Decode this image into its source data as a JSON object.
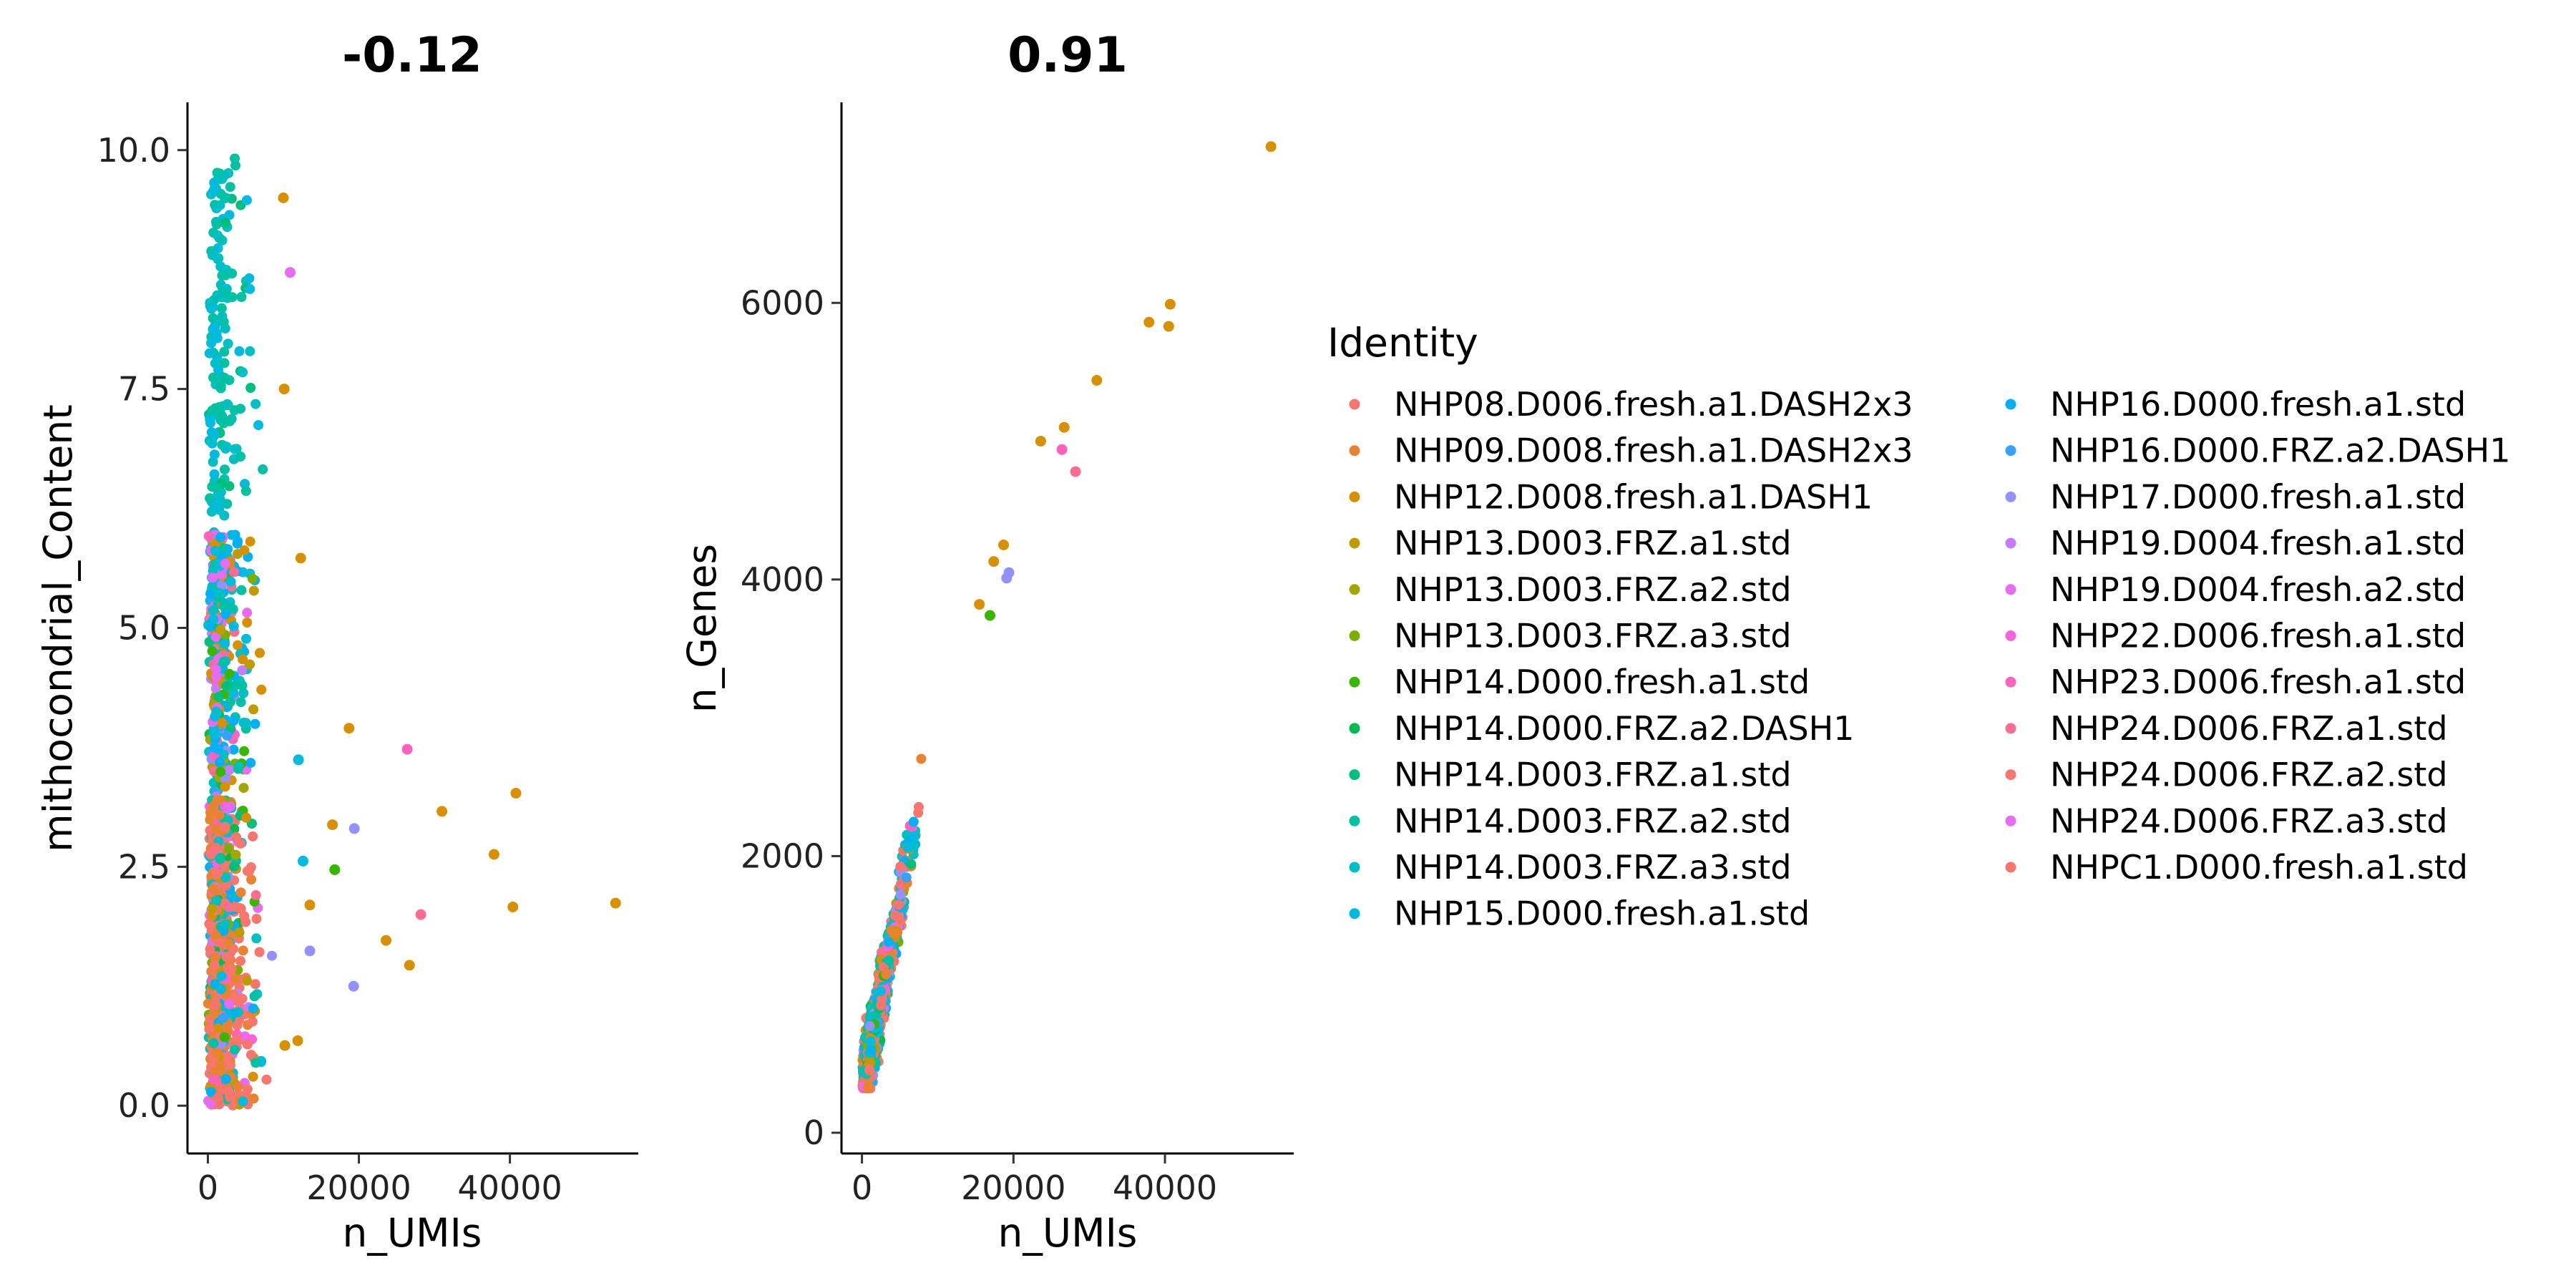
{
  "chart_data": [
    {
      "type": "scatter",
      "title": "-0.12",
      "xlabel": "n_UMIs",
      "ylabel": "mithocondrial_Content",
      "xlim": [
        -2700,
        57000
      ],
      "ylim": [
        -0.5,
        10.5
      ],
      "xticks": [
        0,
        20000,
        40000
      ],
      "xtick_labels": [
        "0",
        "20000",
        "40000"
      ],
      "yticks": [
        0,
        2.5,
        5,
        7.5,
        10
      ],
      "ytick_labels": [
        "0.0",
        "2.5",
        "5.0",
        "7.5",
        "10.0"
      ],
      "grid": false,
      "notable_points": [
        {
          "x": 54000,
          "y": 2.12,
          "identity": "NHP12.D008.fresh.a1.DASH1"
        },
        {
          "x": 40800,
          "y": 3.27,
          "identity": "NHP12.D008.fresh.a1.DASH1"
        },
        {
          "x": 40400,
          "y": 2.08,
          "identity": "NHP12.D008.fresh.a1.DASH1"
        },
        {
          "x": 37900,
          "y": 2.63,
          "identity": "NHP12.D008.fresh.a1.DASH1"
        },
        {
          "x": 31000,
          "y": 3.08,
          "identity": "NHP12.D008.fresh.a1.DASH1"
        },
        {
          "x": 28200,
          "y": 2.0,
          "identity": "NHP24.D006.FRZ.a1.std"
        },
        {
          "x": 26700,
          "y": 1.47,
          "identity": "NHP12.D008.fresh.a1.DASH1"
        },
        {
          "x": 26400,
          "y": 3.73,
          "identity": "NHP23.D006.fresh.a1.std"
        },
        {
          "x": 23600,
          "y": 1.73,
          "identity": "NHP12.D008.fresh.a1.DASH1"
        },
        {
          "x": 19300,
          "y": 1.25,
          "identity": "NHP17.D000.fresh.a1.std"
        },
        {
          "x": 19400,
          "y": 2.9,
          "identity": "NHP17.D000.fresh.a1.std"
        },
        {
          "x": 18700,
          "y": 3.95,
          "identity": "NHP12.D008.fresh.a1.DASH1"
        },
        {
          "x": 16800,
          "y": 2.47,
          "identity": "NHP14.D000.fresh.a1.std"
        },
        {
          "x": 16500,
          "y": 2.94,
          "identity": "NHP12.D008.fresh.a1.DASH1"
        },
        {
          "x": 10000,
          "y": 9.5,
          "identity": "NHP12.D008.fresh.a1.DASH1"
        },
        {
          "x": 10900,
          "y": 8.72,
          "identity": "NHP19.D004.fresh.a2.std"
        },
        {
          "x": 10100,
          "y": 7.5,
          "identity": "NHP12.D008.fresh.a1.DASH1"
        },
        {
          "x": 12300,
          "y": 5.73,
          "identity": "NHP12.D008.fresh.a1.DASH1"
        },
        {
          "x": 12000,
          "y": 3.62,
          "identity": "NHP15.D000.fresh.a1.std"
        },
        {
          "x": 12600,
          "y": 2.56,
          "identity": "NHP15.D000.fresh.a1.std"
        },
        {
          "x": 13500,
          "y": 2.1,
          "identity": "NHP12.D008.fresh.a1.DASH1"
        },
        {
          "x": 13500,
          "y": 1.62,
          "identity": "NHP17.D000.fresh.a1.std"
        },
        {
          "x": 11900,
          "y": 0.68,
          "identity": "NHP12.D008.fresh.a1.DASH1"
        },
        {
          "x": 10200,
          "y": 0.63,
          "identity": "NHP12.D008.fresh.a1.DASH1"
        }
      ]
    },
    {
      "type": "scatter",
      "title": "0.91",
      "xlabel": "n_UMIs",
      "ylabel": "n_Genes",
      "xlim": [
        -2700,
        57000
      ],
      "ylim": [
        -150,
        7450
      ],
      "xticks": [
        0,
        20000,
        40000
      ],
      "xtick_labels": [
        "0",
        "20000",
        "40000"
      ],
      "yticks": [
        0,
        2000,
        4000,
        6000
      ],
      "ytick_labels": [
        "0",
        "2000",
        "4000",
        "6000"
      ],
      "grid": false,
      "notable_points": [
        {
          "x": 54000,
          "y": 7130,
          "identity": "NHP12.D008.fresh.a1.DASH1"
        },
        {
          "x": 40700,
          "y": 5990,
          "identity": "NHP12.D008.fresh.a1.DASH1"
        },
        {
          "x": 40500,
          "y": 5830,
          "identity": "NHP12.D008.fresh.a1.DASH1"
        },
        {
          "x": 37900,
          "y": 5860,
          "identity": "NHP12.D008.fresh.a1.DASH1"
        },
        {
          "x": 31000,
          "y": 5440,
          "identity": "NHP12.D008.fresh.a1.DASH1"
        },
        {
          "x": 28200,
          "y": 4780,
          "identity": "NHP24.D006.FRZ.a1.std"
        },
        {
          "x": 26700,
          "y": 5100,
          "identity": "NHP12.D008.fresh.a1.DASH1"
        },
        {
          "x": 26400,
          "y": 4940,
          "identity": "NHP23.D006.fresh.a1.std"
        },
        {
          "x": 23600,
          "y": 5000,
          "identity": "NHP12.D008.fresh.a1.DASH1"
        },
        {
          "x": 19400,
          "y": 4050,
          "identity": "NHP17.D000.fresh.a1.std"
        },
        {
          "x": 19100,
          "y": 4010,
          "identity": "NHP17.D000.fresh.a1.std"
        },
        {
          "x": 18700,
          "y": 4250,
          "identity": "NHP12.D008.fresh.a1.DASH1"
        },
        {
          "x": 17400,
          "y": 4130,
          "identity": "NHP12.D008.fresh.a1.DASH1"
        },
        {
          "x": 16900,
          "y": 3740,
          "identity": "NHP14.D000.fresh.a1.std"
        },
        {
          "x": 15500,
          "y": 3820,
          "identity": "NHP12.D008.fresh.a1.DASH1"
        }
      ]
    }
  ],
  "legend": {
    "title": "Identity",
    "placement": "right",
    "entries": [
      {
        "label": "NHP08.D006.fresh.a1.DASH2x3",
        "color": "#F8766D"
      },
      {
        "label": "NHP09.D008.fresh.a1.DASH2x3",
        "color": "#EA8331"
      },
      {
        "label": "NHP12.D008.fresh.a1.DASH1",
        "color": "#D89000"
      },
      {
        "label": "NHP13.D003.FRZ.a1.std",
        "color": "#C09B00"
      },
      {
        "label": "NHP13.D003.FRZ.a2.std",
        "color": "#A3A500"
      },
      {
        "label": "NHP13.D003.FRZ.a3.std",
        "color": "#7CAE00"
      },
      {
        "label": "NHP14.D000.fresh.a1.std",
        "color": "#39B600"
      },
      {
        "label": "NHP14.D000.FRZ.a2.DASH1",
        "color": "#00BB4E"
      },
      {
        "label": "NHP14.D003.FRZ.a1.std",
        "color": "#00BF7D"
      },
      {
        "label": "NHP14.D003.FRZ.a2.std",
        "color": "#00C1A3"
      },
      {
        "label": "NHP14.D003.FRZ.a3.std",
        "color": "#00BFC4"
      },
      {
        "label": "NHP15.D000.fresh.a1.std",
        "color": "#00BAE0"
      },
      {
        "label": "NHP16.D000.fresh.a1.std",
        "color": "#00B0F6"
      },
      {
        "label": "NHP16.D000.FRZ.a2.DASH1",
        "color": "#35A2FF"
      },
      {
        "label": "NHP17.D000.fresh.a1.std",
        "color": "#9590FF"
      },
      {
        "label": "NHP19.D004.fresh.a1.std",
        "color": "#C77CFF"
      },
      {
        "label": "NHP19.D004.fresh.a2.std",
        "color": "#E76BF3"
      },
      {
        "label": "NHP22.D006.fresh.a1.std",
        "color": "#FA62DB"
      },
      {
        "label": "NHP23.D006.fresh.a1.std",
        "color": "#FF62BC"
      },
      {
        "label": "NHP24.D006.FRZ.a1.std",
        "color": "#FF6C91"
      },
      {
        "label": "NHP24.D006.FRZ.a2.std",
        "color": "#F8766D"
      },
      {
        "label": "NHP24.D006.FRZ.a3.std",
        "color": "#E76BF3"
      },
      {
        "label": "NHPC1.D000.fresh.a1.std",
        "color": "#F8766D"
      }
    ]
  }
}
